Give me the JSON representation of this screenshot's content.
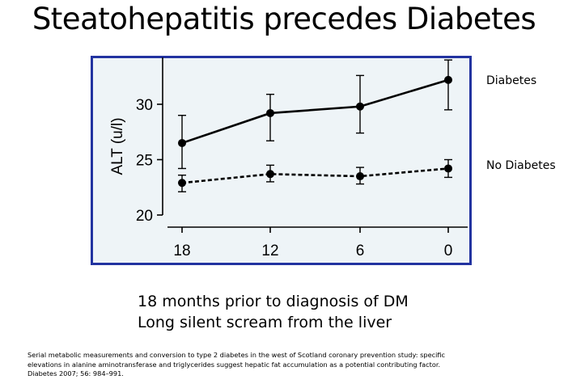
{
  "slide": {
    "title": "Steatohepatitis precedes Diabetes",
    "caption_lines": [
      "18 months prior to diagnosis of DM",
      "Long silent scream from the liver"
    ],
    "citation_lines": [
      "Serial metabolic measurements and conversion to type 2 diabetes in the west of Scotland coronary prevention study: specific",
      "elevations in alanine aminotransferase and triglycerides suggest hepatic fat accumulation as a potential contributing factor.",
      "Diabetes 2007; 56: 984–991."
    ]
  },
  "colors": {
    "frame": "#2233a0",
    "plot_bg": "#eef4f7",
    "ink": "#000000"
  },
  "chart_data": {
    "type": "line",
    "title": "",
    "xlabel": "",
    "ylabel": "ALT (u/l)",
    "categories": [
      "18",
      "12",
      "6",
      "0"
    ],
    "yticks": [
      20,
      25,
      30
    ],
    "ylim": [
      19.9,
      34
    ],
    "series": [
      {
        "name": "Diabetes",
        "style": "solid",
        "values": [
          26.5,
          29.2,
          29.8,
          32.2
        ],
        "err_low": [
          24.2,
          26.7,
          27.4,
          29.5
        ],
        "err_high": [
          29.0,
          30.9,
          32.6,
          34.0
        ]
      },
      {
        "name": "No Diabetes",
        "style": "dashed",
        "values": [
          22.9,
          23.7,
          23.5,
          24.2
        ],
        "err_low": [
          22.1,
          23.0,
          22.8,
          23.4
        ],
        "err_high": [
          23.6,
          24.5,
          24.3,
          25.0
        ]
      }
    ]
  }
}
